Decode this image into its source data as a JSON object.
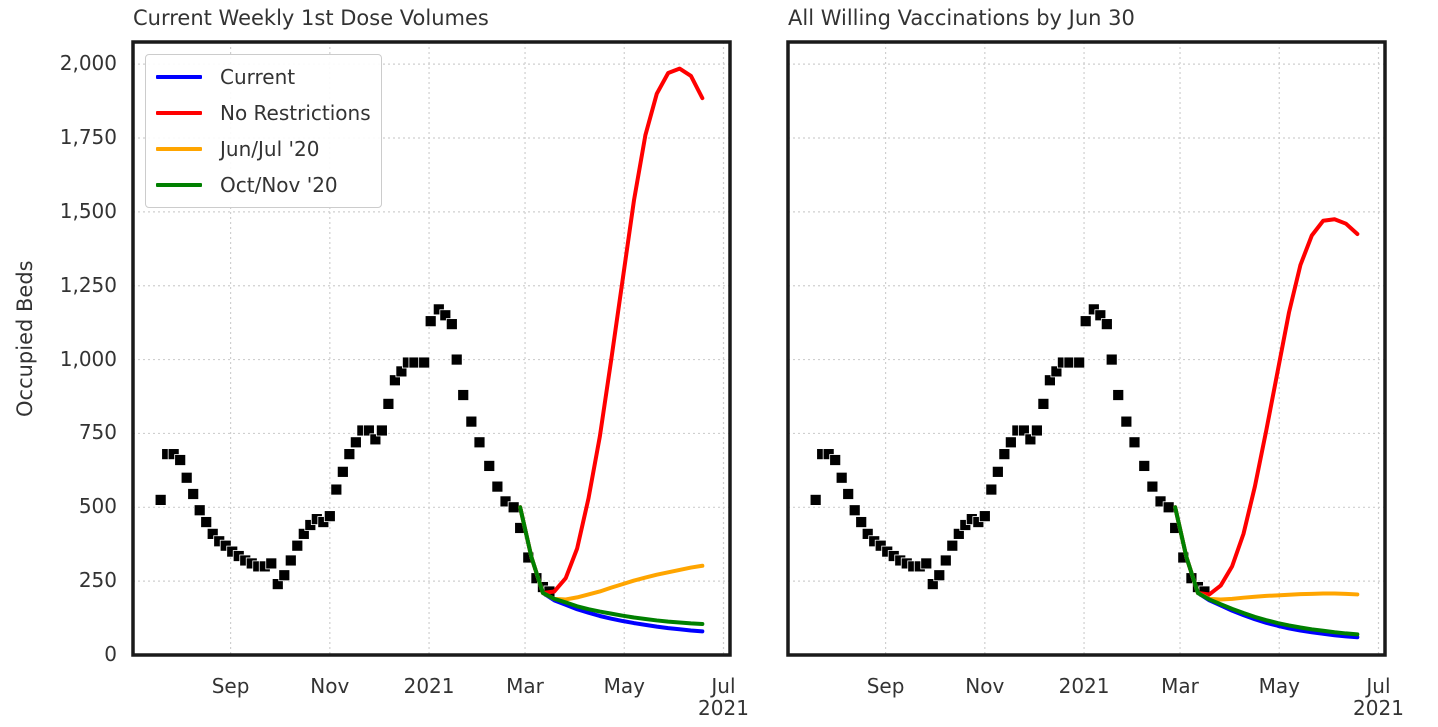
{
  "chart_data": [
    {
      "type": "line",
      "title": "Current Weekly 1st Dose Volumes",
      "y_label": "Occupied Beds",
      "legend": "upper left",
      "grid": true,
      "xlim": [
        "2020-07-03",
        "2021-07-05"
      ],
      "xticks": [
        {
          "value": "2020-09-01",
          "label": "Sep"
        },
        {
          "value": "2020-11-01",
          "label": "Nov"
        },
        {
          "value": "2021-01-01",
          "label": "2021"
        },
        {
          "value": "2021-03-01",
          "label": "Mar"
        },
        {
          "value": "2021-05-01",
          "label": "May"
        },
        {
          "value": "2021-07-01",
          "label": "Jul\n2021"
        }
      ],
      "ylim": [
        0,
        2075
      ],
      "yticks": [
        0,
        250,
        500,
        750,
        {
          "value": 1000,
          "label": "1,000"
        },
        {
          "value": 1250,
          "label": "1,250"
        },
        {
          "value": 1500,
          "label": "1,500"
        },
        {
          "value": 1750,
          "label": "1,750"
        },
        {
          "value": 2000,
          "label": "2,000"
        }
      ],
      "show_ytick_labels": true,
      "observed": {
        "color": "#000000",
        "marker": "square",
        "x": [
          "2020-07-20",
          "2020-07-24",
          "2020-07-28",
          "2020-08-01",
          "2020-08-05",
          "2020-08-09",
          "2020-08-13",
          "2020-08-17",
          "2020-08-21",
          "2020-08-25",
          "2020-08-29",
          "2020-09-02",
          "2020-09-06",
          "2020-09-10",
          "2020-09-14",
          "2020-09-18",
          "2020-09-22",
          "2020-09-26",
          "2020-09-30",
          "2020-10-04",
          "2020-10-08",
          "2020-10-12",
          "2020-10-16",
          "2020-10-20",
          "2020-10-24",
          "2020-10-28",
          "2020-11-01",
          "2020-11-05",
          "2020-11-09",
          "2020-11-13",
          "2020-11-17",
          "2020-11-21",
          "2020-11-25",
          "2020-11-29",
          "2020-12-03",
          "2020-12-07",
          "2020-12-11",
          "2020-12-15",
          "2020-12-19",
          "2020-12-23",
          "2020-12-29",
          "2021-01-02",
          "2021-01-07",
          "2021-01-11",
          "2021-01-15",
          "2021-01-18",
          "2021-01-22",
          "2021-01-27",
          "2021-02-01",
          "2021-02-07",
          "2021-02-12",
          "2021-02-17",
          "2021-02-22",
          "2021-02-26",
          "2021-03-03",
          "2021-03-08",
          "2021-03-12",
          "2021-03-16"
        ],
        "values": [
          525,
          680,
          680,
          660,
          600,
          545,
          490,
          450,
          410,
          385,
          370,
          350,
          335,
          320,
          310,
          300,
          300,
          310,
          240,
          270,
          320,
          370,
          410,
          440,
          460,
          450,
          470,
          560,
          620,
          680,
          720,
          760,
          760,
          730,
          760,
          850,
          930,
          960,
          990,
          990,
          990,
          1130,
          1170,
          1150,
          1120,
          1000,
          880,
          790,
          720,
          640,
          570,
          520,
          500,
          430,
          330,
          260,
          230,
          215
        ]
      },
      "series": [
        {
          "name": "Current",
          "color": "#0000ff",
          "x": [
            "2021-02-26",
            "2021-03-05",
            "2021-03-12",
            "2021-03-19",
            "2021-03-26",
            "2021-04-02",
            "2021-04-09",
            "2021-04-16",
            "2021-04-23",
            "2021-04-30",
            "2021-05-07",
            "2021-05-14",
            "2021-05-21",
            "2021-05-28",
            "2021-06-04",
            "2021-06-11",
            "2021-06-18"
          ],
          "values": [
            500,
            330,
            210,
            185,
            170,
            155,
            143,
            132,
            123,
            115,
            108,
            102,
            96,
            91,
            87,
            83,
            80
          ]
        },
        {
          "name": "No Restrictions",
          "color": "#ff0000",
          "x": [
            "2021-02-26",
            "2021-03-05",
            "2021-03-12",
            "2021-03-19",
            "2021-03-26",
            "2021-04-02",
            "2021-04-09",
            "2021-04-16",
            "2021-04-23",
            "2021-04-30",
            "2021-05-07",
            "2021-05-14",
            "2021-05-21",
            "2021-05-28",
            "2021-06-04",
            "2021-06-11",
            "2021-06-18"
          ],
          "values": [
            500,
            330,
            210,
            215,
            260,
            360,
            530,
            740,
            1000,
            1270,
            1540,
            1760,
            1900,
            1970,
            1985,
            1960,
            1885
          ]
        },
        {
          "name": "Jun/Jul '20",
          "color": "#ffa500",
          "x": [
            "2021-02-26",
            "2021-03-05",
            "2021-03-12",
            "2021-03-19",
            "2021-03-26",
            "2021-04-02",
            "2021-04-09",
            "2021-04-16",
            "2021-04-23",
            "2021-04-30",
            "2021-05-07",
            "2021-05-14",
            "2021-05-21",
            "2021-05-28",
            "2021-06-04",
            "2021-06-11",
            "2021-06-18"
          ],
          "values": [
            500,
            330,
            210,
            190,
            188,
            195,
            205,
            215,
            228,
            240,
            252,
            262,
            272,
            280,
            288,
            296,
            302
          ]
        },
        {
          "name": "Oct/Nov '20",
          "color": "#008000",
          "x": [
            "2021-02-26",
            "2021-03-05",
            "2021-03-12",
            "2021-03-19",
            "2021-03-26",
            "2021-04-02",
            "2021-04-09",
            "2021-04-16",
            "2021-04-23",
            "2021-04-30",
            "2021-05-07",
            "2021-05-14",
            "2021-05-21",
            "2021-05-28",
            "2021-06-04",
            "2021-06-11",
            "2021-06-18"
          ],
          "values": [
            500,
            330,
            210,
            190,
            178,
            165,
            155,
            147,
            140,
            133,
            127,
            122,
            117,
            113,
            110,
            107,
            105
          ]
        }
      ]
    },
    {
      "type": "line",
      "title": "All Willing Vaccinations by Jun 30",
      "grid": true,
      "xlim": [
        "2020-07-03",
        "2021-07-05"
      ],
      "xticks": [
        {
          "value": "2020-09-01",
          "label": "Sep"
        },
        {
          "value": "2020-11-01",
          "label": "Nov"
        },
        {
          "value": "2021-01-01",
          "label": "2021"
        },
        {
          "value": "2021-03-01",
          "label": "Mar"
        },
        {
          "value": "2021-05-01",
          "label": "May"
        },
        {
          "value": "2021-07-01",
          "label": "Jul\n2021"
        }
      ],
      "ylim": [
        0,
        2075
      ],
      "yticks": [
        0,
        250,
        500,
        750,
        1000,
        1250,
        1500,
        1750,
        2000
      ],
      "show_ytick_labels": false,
      "observed": {
        "color": "#000000",
        "marker": "square",
        "x": [
          "2020-07-20",
          "2020-07-24",
          "2020-07-28",
          "2020-08-01",
          "2020-08-05",
          "2020-08-09",
          "2020-08-13",
          "2020-08-17",
          "2020-08-21",
          "2020-08-25",
          "2020-08-29",
          "2020-09-02",
          "2020-09-06",
          "2020-09-10",
          "2020-09-14",
          "2020-09-18",
          "2020-09-22",
          "2020-09-26",
          "2020-09-30",
          "2020-10-04",
          "2020-10-08",
          "2020-10-12",
          "2020-10-16",
          "2020-10-20",
          "2020-10-24",
          "2020-10-28",
          "2020-11-01",
          "2020-11-05",
          "2020-11-09",
          "2020-11-13",
          "2020-11-17",
          "2020-11-21",
          "2020-11-25",
          "2020-11-29",
          "2020-12-03",
          "2020-12-07",
          "2020-12-11",
          "2020-12-15",
          "2020-12-19",
          "2020-12-23",
          "2020-12-29",
          "2021-01-02",
          "2021-01-07",
          "2021-01-11",
          "2021-01-15",
          "2021-01-18",
          "2021-01-22",
          "2021-01-27",
          "2021-02-01",
          "2021-02-07",
          "2021-02-12",
          "2021-02-17",
          "2021-02-22",
          "2021-02-26",
          "2021-03-03",
          "2021-03-08",
          "2021-03-12",
          "2021-03-16"
        ],
        "values": [
          525,
          680,
          680,
          660,
          600,
          545,
          490,
          450,
          410,
          385,
          370,
          350,
          335,
          320,
          310,
          300,
          300,
          310,
          240,
          270,
          320,
          370,
          410,
          440,
          460,
          450,
          470,
          560,
          620,
          680,
          720,
          760,
          760,
          730,
          760,
          850,
          930,
          960,
          990,
          990,
          990,
          1130,
          1170,
          1150,
          1120,
          1000,
          880,
          790,
          720,
          640,
          570,
          520,
          500,
          430,
          330,
          260,
          230,
          215
        ]
      },
      "series": [
        {
          "color": "#0000ff",
          "x": [
            "2021-02-26",
            "2021-03-05",
            "2021-03-12",
            "2021-03-19",
            "2021-03-26",
            "2021-04-02",
            "2021-04-09",
            "2021-04-16",
            "2021-04-23",
            "2021-04-30",
            "2021-05-07",
            "2021-05-14",
            "2021-05-21",
            "2021-05-28",
            "2021-06-04",
            "2021-06-11",
            "2021-06-18"
          ],
          "values": [
            500,
            330,
            210,
            185,
            168,
            150,
            135,
            121,
            109,
            99,
            90,
            83,
            77,
            72,
            67,
            63,
            60
          ]
        },
        {
          "color": "#ff0000",
          "x": [
            "2021-02-26",
            "2021-03-05",
            "2021-03-12",
            "2021-03-19",
            "2021-03-26",
            "2021-04-02",
            "2021-04-09",
            "2021-04-16",
            "2021-04-23",
            "2021-04-30",
            "2021-05-07",
            "2021-05-14",
            "2021-05-21",
            "2021-05-28",
            "2021-06-04",
            "2021-06-11",
            "2021-06-18"
          ],
          "values": [
            500,
            330,
            210,
            205,
            235,
            300,
            410,
            570,
            760,
            960,
            1160,
            1320,
            1420,
            1470,
            1475,
            1460,
            1425
          ]
        },
        {
          "color": "#ffa500",
          "x": [
            "2021-02-26",
            "2021-03-05",
            "2021-03-12",
            "2021-03-19",
            "2021-03-26",
            "2021-04-02",
            "2021-04-09",
            "2021-04-16",
            "2021-04-23",
            "2021-04-30",
            "2021-05-07",
            "2021-05-14",
            "2021-05-21",
            "2021-05-28",
            "2021-06-04",
            "2021-06-11",
            "2021-06-18"
          ],
          "values": [
            500,
            330,
            210,
            190,
            188,
            190,
            194,
            197,
            200,
            202,
            204,
            206,
            207,
            208,
            208,
            207,
            205
          ]
        },
        {
          "color": "#008000",
          "x": [
            "2021-02-26",
            "2021-03-05",
            "2021-03-12",
            "2021-03-19",
            "2021-03-26",
            "2021-04-02",
            "2021-04-09",
            "2021-04-16",
            "2021-04-23",
            "2021-04-30",
            "2021-05-07",
            "2021-05-14",
            "2021-05-21",
            "2021-05-28",
            "2021-06-04",
            "2021-06-11",
            "2021-06-18"
          ],
          "values": [
            500,
            330,
            210,
            188,
            172,
            156,
            142,
            129,
            118,
            108,
            100,
            93,
            87,
            82,
            77,
            73,
            70
          ]
        }
      ]
    }
  ]
}
